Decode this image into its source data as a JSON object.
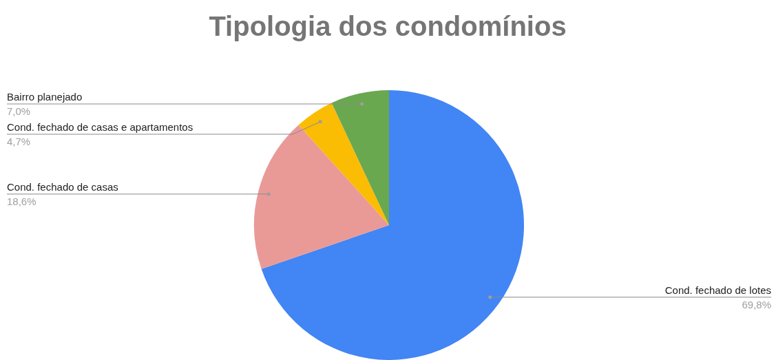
{
  "chart_data": {
    "type": "pie",
    "title": "Tipologia dos condomínios",
    "categories": [
      "Cond. fechado de lotes",
      "Cond. fechado de casas",
      "Cond. fechado de casas e apartamentos",
      "Bairro planejado"
    ],
    "values": [
      69.8,
      18.6,
      4.7,
      7.0
    ],
    "colors": [
      "#4285f4",
      "#e99a97",
      "#fbbc04",
      "#6aa84f"
    ],
    "value_labels": [
      "69,8%",
      "18,6%",
      "4,7%",
      "7,0%"
    ]
  }
}
